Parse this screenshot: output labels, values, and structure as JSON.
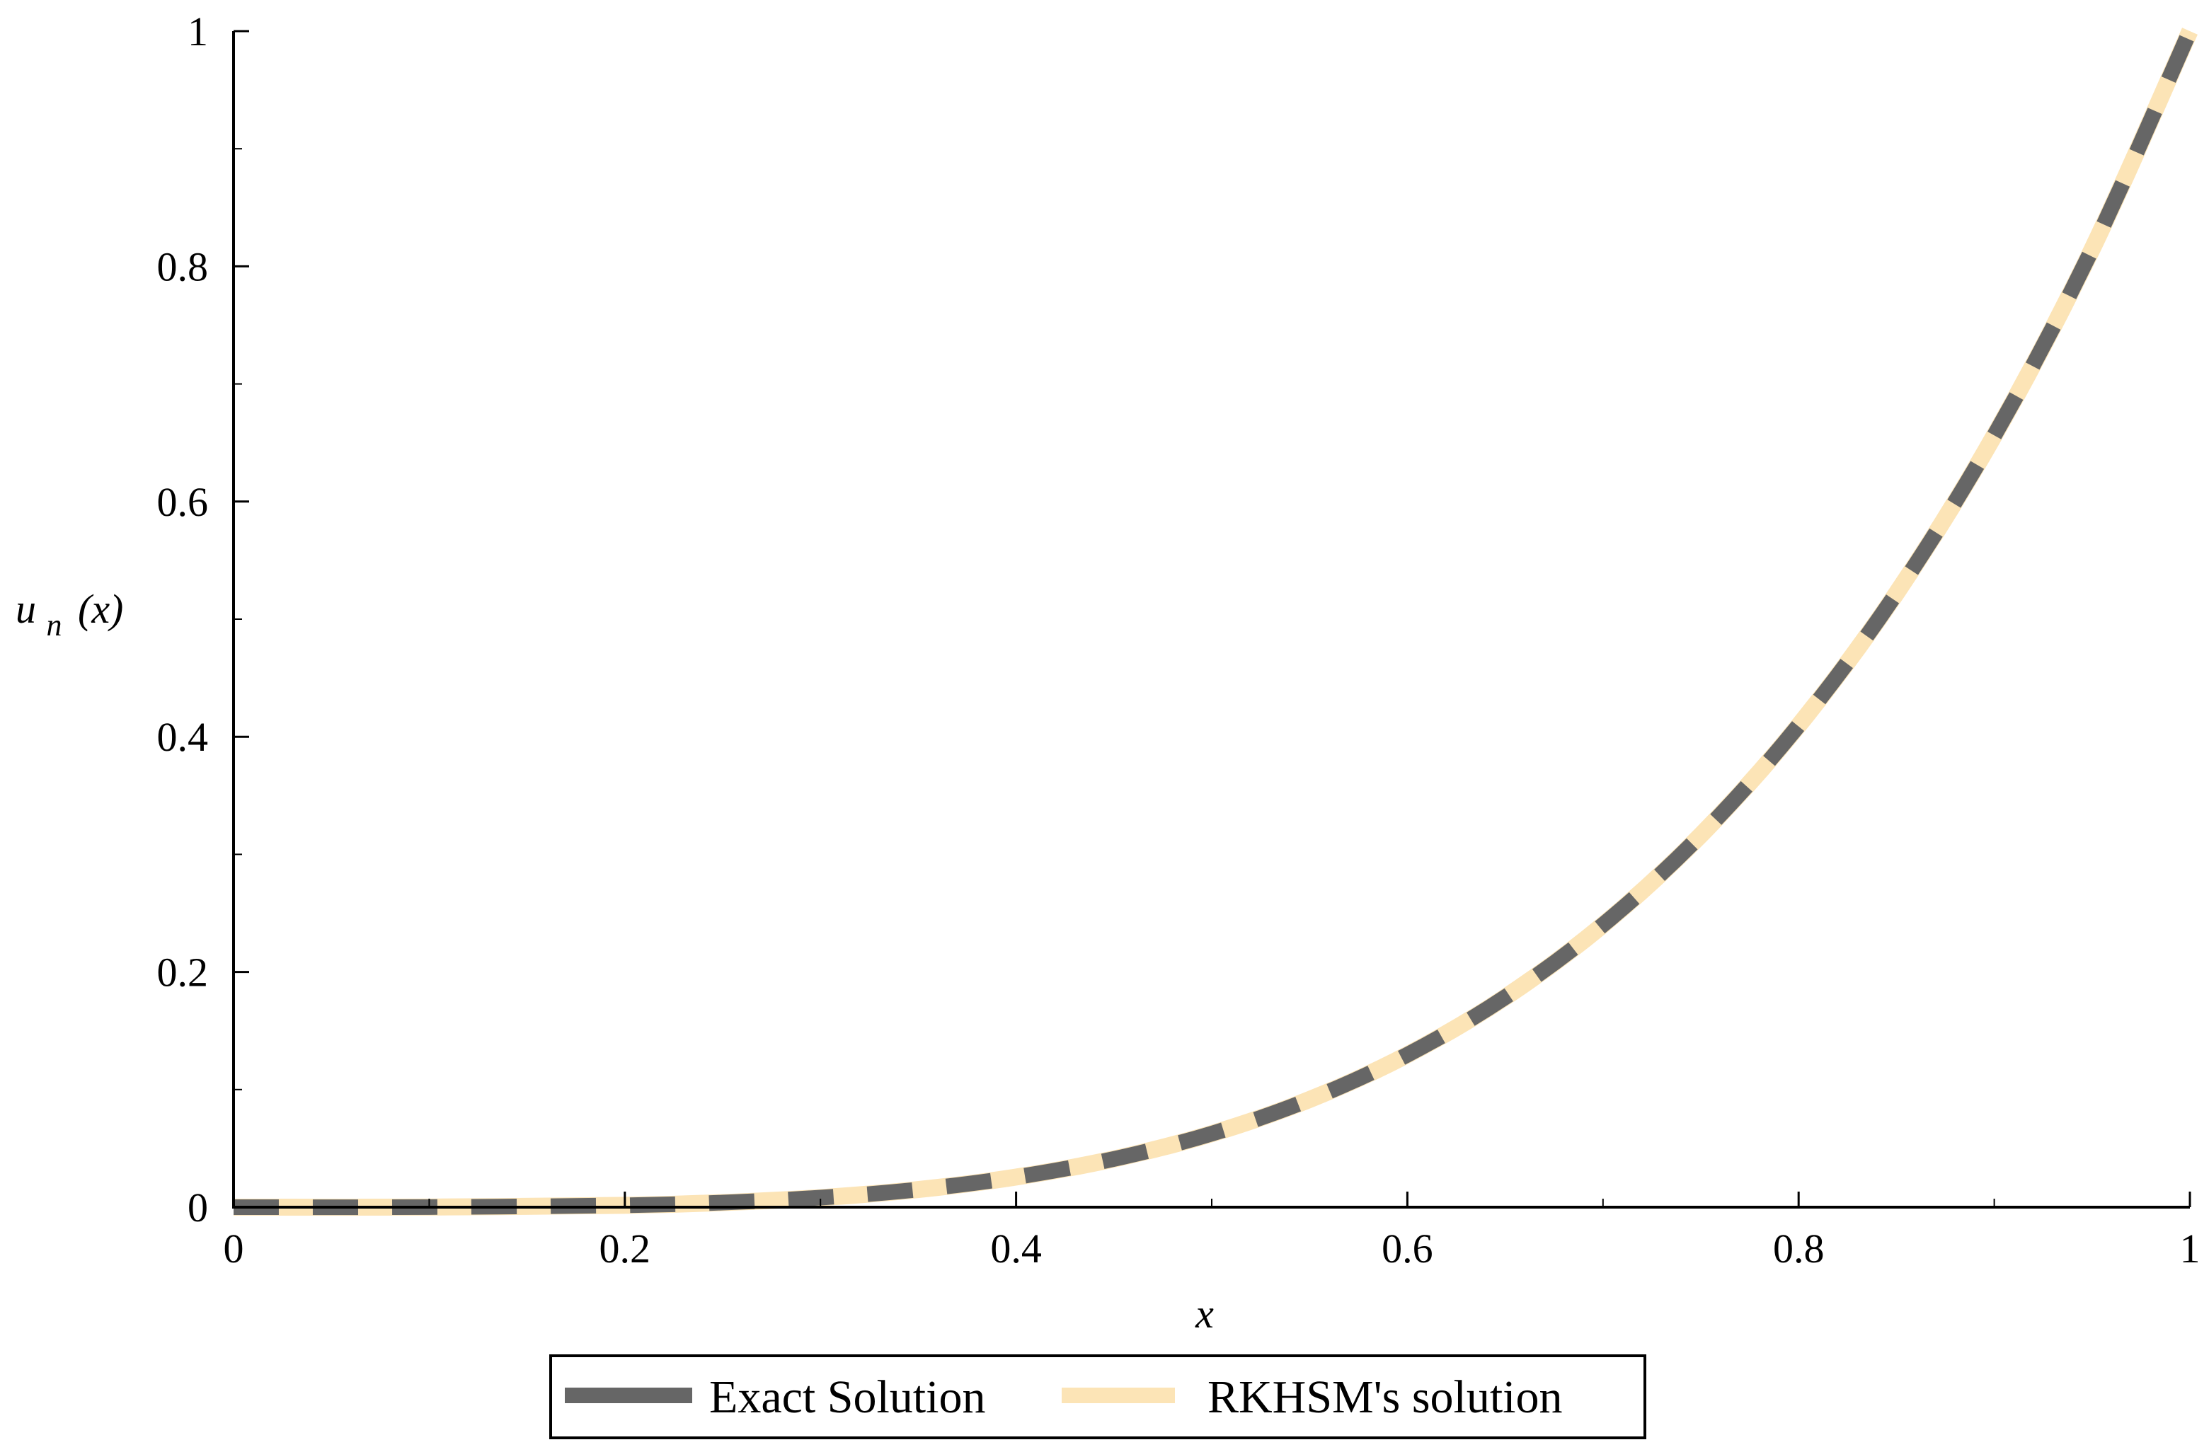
{
  "chart_data": {
    "type": "line",
    "xlabel": "x",
    "ylabel": {
      "base": "u",
      "subscript": "n",
      "suffix": "(x)"
    },
    "xlim": [
      0,
      1
    ],
    "ylim": [
      0,
      1
    ],
    "x_ticks": [
      "0",
      "0.2",
      "0.4",
      "0.6",
      "0.8",
      "1"
    ],
    "y_ticks": [
      "0",
      "0.2",
      "0.4",
      "0.6",
      "0.8",
      "1"
    ],
    "grid": false,
    "legend_position": "bottom-center",
    "series": [
      {
        "name": "Exact Solution",
        "color": "#666666",
        "style": "dashed",
        "x": [
          0,
          0.1,
          0.2,
          0.25,
          0.3,
          0.35,
          0.4,
          0.45,
          0.5,
          0.55,
          0.6,
          0.65,
          0.7,
          0.75,
          0.8,
          0.85,
          0.9,
          0.95,
          1
        ],
        "y": [
          0,
          0.0001,
          0.0016,
          0.0039,
          0.0081,
          0.015,
          0.0256,
          0.041,
          0.0625,
          0.0915,
          0.1296,
          0.1785,
          0.2401,
          0.3164,
          0.4096,
          0.522,
          0.6561,
          0.8145,
          1
        ]
      },
      {
        "name": "RKHSM's solution",
        "color": "#FCE4B6",
        "style": "solid",
        "x": [
          0,
          0.1,
          0.2,
          0.25,
          0.3,
          0.35,
          0.4,
          0.45,
          0.5,
          0.55,
          0.6,
          0.65,
          0.7,
          0.75,
          0.8,
          0.85,
          0.9,
          0.95,
          1
        ],
        "y": [
          0,
          0.0001,
          0.0016,
          0.0039,
          0.0081,
          0.015,
          0.0256,
          0.041,
          0.0625,
          0.0915,
          0.1296,
          0.1785,
          0.2401,
          0.3164,
          0.4096,
          0.522,
          0.6561,
          0.8145,
          1
        ]
      }
    ]
  }
}
